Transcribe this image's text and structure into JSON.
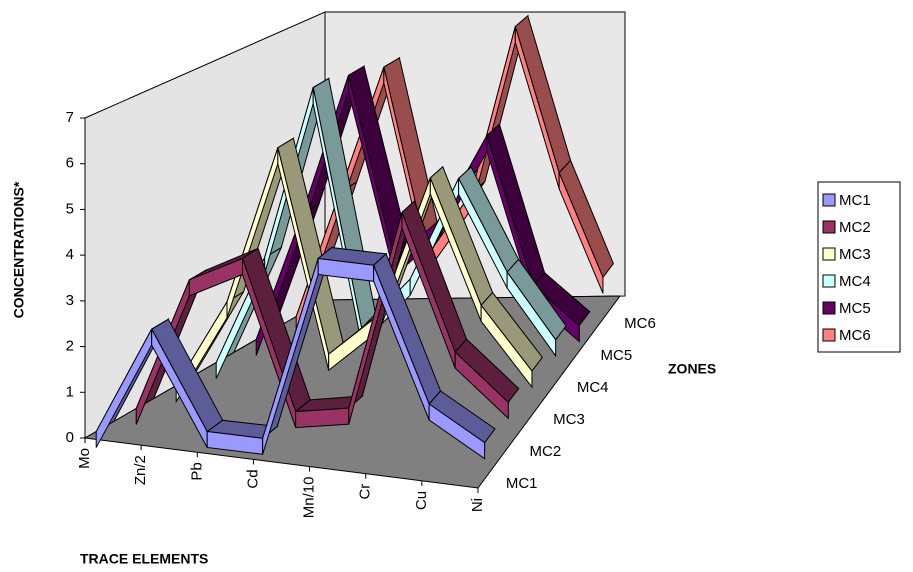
{
  "chart_data": {
    "type": "line",
    "y_label": "CONCENTRATIONS*",
    "x_label": "TRACE ELEMENTS",
    "z_label": "ZONES",
    "categories": [
      "Mo",
      "Zn/2",
      "Pb",
      "Cd",
      "Mn/10",
      "Cr",
      "Cu",
      "Ni"
    ],
    "series": [
      {
        "name": "MC1",
        "color": "#9999ff",
        "values": [
          0,
          2.4,
          0.3,
          0.3,
          4.4,
          4.4,
          1.5,
          0.8
        ]
      },
      {
        "name": "MC2",
        "color": "#993366",
        "values": [
          0,
          3,
          3.6,
          0.3,
          0.5,
          5,
          2,
          1
        ]
      },
      {
        "name": "MC3",
        "color": "#ffffcc",
        "values": [
          0,
          2,
          5.6,
          1,
          2,
          5.2,
          2.4,
          1
        ]
      },
      {
        "name": "MC4",
        "color": "#ccffff",
        "values": [
          0,
          2.5,
          6.5,
          1,
          2.2,
          4.6,
          2.5,
          1
        ]
      },
      {
        "name": "MC5",
        "color": "#660066",
        "values": [
          0,
          3,
          6.3,
          2,
          3,
          5,
          1.5,
          0.6
        ]
      },
      {
        "name": "MC6",
        "color": "#ff8080",
        "values": [
          0,
          3,
          6,
          1.5,
          3,
          7,
          3.5,
          1
        ]
      }
    ],
    "ylim": [
      0,
      7
    ],
    "yticks": [
      0,
      1,
      2,
      3,
      4,
      5,
      6,
      7
    ],
    "legend": "right"
  }
}
